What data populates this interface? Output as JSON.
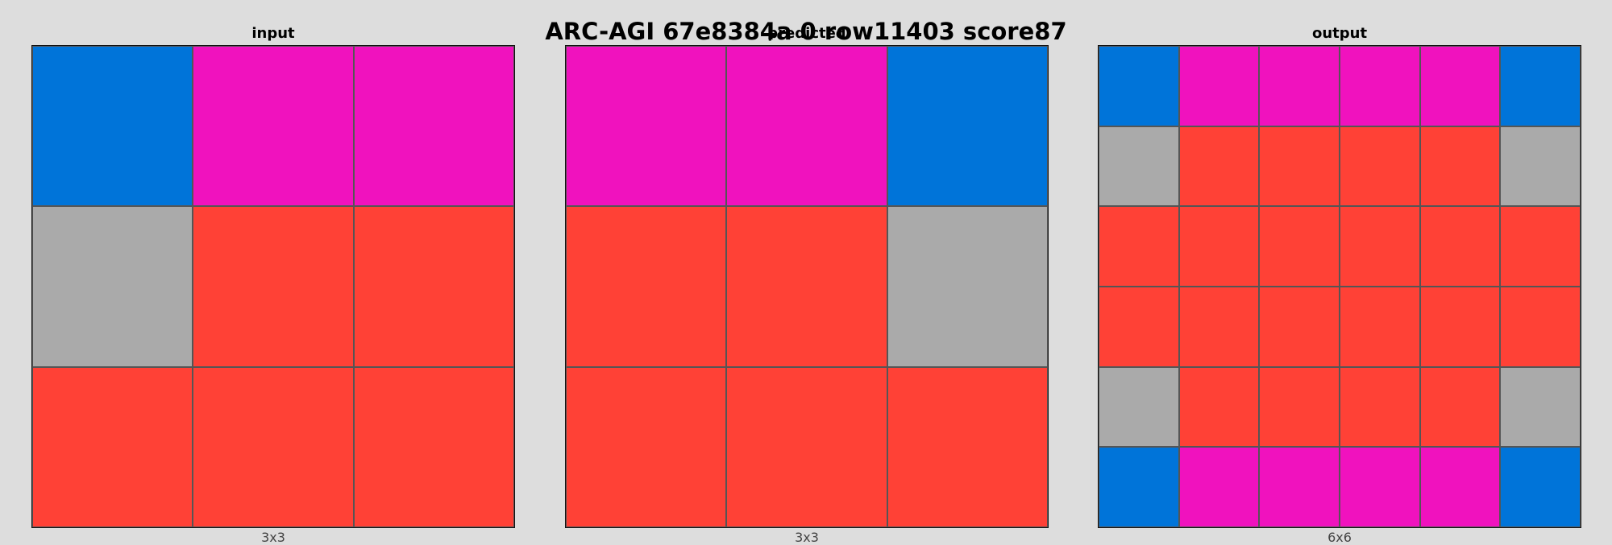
{
  "title": "ARC-AGI 67e8384a 0 row11403 score87",
  "colors": {
    "1": "#0074d9",
    "6": "#f012be",
    "5": "#aaaaaa",
    "2": "#ff4136"
  },
  "panels": [
    {
      "title": "input",
      "size_label": "3x3",
      "grid": [
        [
          1,
          6,
          6
        ],
        [
          5,
          2,
          2
        ],
        [
          2,
          2,
          2
        ]
      ]
    },
    {
      "title": "predicted",
      "size_label": "3x3",
      "grid": [
        [
          6,
          6,
          1
        ],
        [
          2,
          2,
          5
        ],
        [
          2,
          2,
          2
        ]
      ]
    },
    {
      "title": "output",
      "size_label": "6x6",
      "grid": [
        [
          1,
          6,
          6,
          6,
          6,
          1
        ],
        [
          5,
          2,
          2,
          2,
          2,
          5
        ],
        [
          2,
          2,
          2,
          2,
          2,
          2
        ],
        [
          2,
          2,
          2,
          2,
          2,
          2
        ],
        [
          5,
          2,
          2,
          2,
          2,
          5
        ],
        [
          1,
          6,
          6,
          6,
          6,
          1
        ]
      ]
    }
  ]
}
